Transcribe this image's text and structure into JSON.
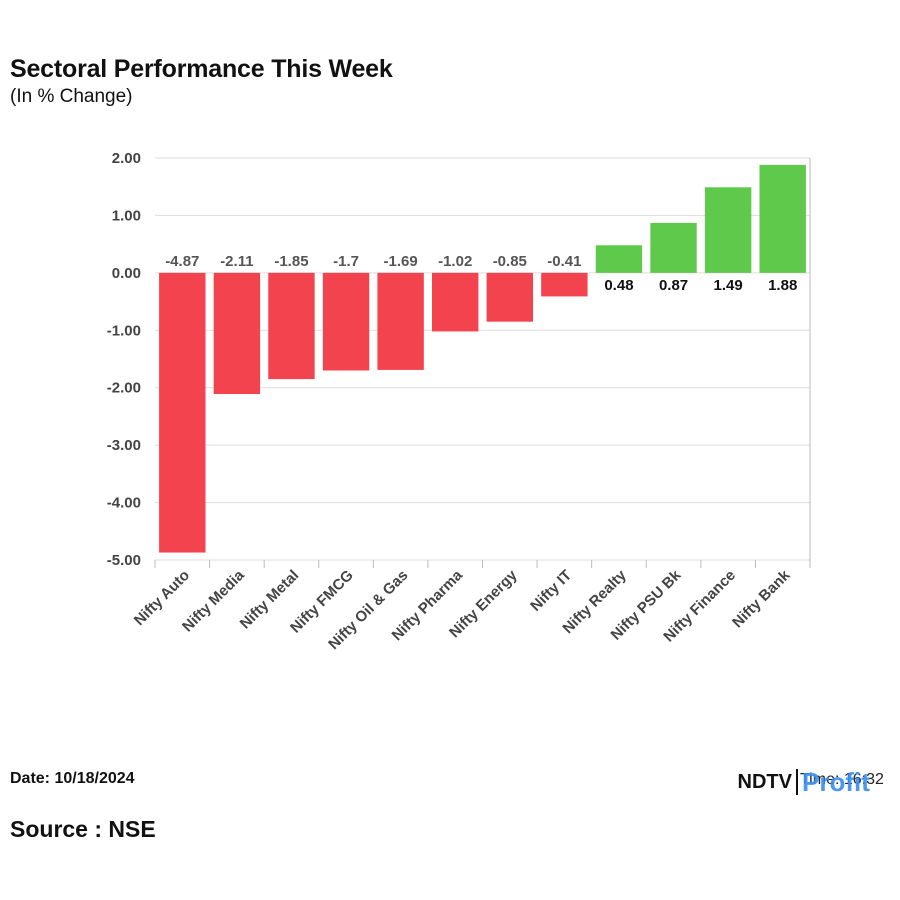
{
  "chart_data": {
    "type": "bar",
    "title": "Sectoral Performance This Week",
    "subtitle": "(In % Change)",
    "categories": [
      "Nifty Auto",
      "Nifty Media",
      "Nifty Metal",
      "Nifty FMCG",
      "Nifty Oil & Gas",
      "Nifty Pharma",
      "Nifty Energy",
      "Nifty IT",
      "Nifty Realty",
      "Nifty PSU Bk",
      "Nifty Finance",
      "Nifty Bank"
    ],
    "values": [
      -4.87,
      -2.11,
      -1.85,
      -1.7,
      -1.69,
      -1.02,
      -0.85,
      -0.41,
      0.48,
      0.87,
      1.49,
      1.88
    ],
    "data_labels": [
      "-4.87",
      "-2.11",
      "-1.85",
      "-1.7",
      "-1.69",
      "-1.02",
      "-0.85",
      "-0.41",
      "0.48",
      "0.87",
      "1.49",
      "1.88"
    ],
    "ylim": [
      -5,
      2
    ],
    "yticks": [
      2,
      1,
      0,
      -1,
      -2,
      -3,
      -4,
      -5
    ],
    "ytick_labels": [
      "2.00",
      "1.00",
      "0.00",
      "-1.00",
      "-2.00",
      "-3.00",
      "-4.00",
      "-5.00"
    ],
    "xlabel": "",
    "ylabel": "",
    "grid": true,
    "legend": "none"
  },
  "colors": {
    "negative": "#f2434f",
    "positive": "#5ec94a",
    "grid": "#dddddd",
    "axis": "#bbbbbb",
    "negative_label": "#555555",
    "positive_label": "#111111",
    "profit": "#3b8ff0"
  },
  "footer": {
    "date": "Date: 10/18/2024",
    "source": "Source : NSE"
  },
  "logo": {
    "brand": "NDTV",
    "profit": "Profit",
    "time": "Time: 16:32"
  }
}
